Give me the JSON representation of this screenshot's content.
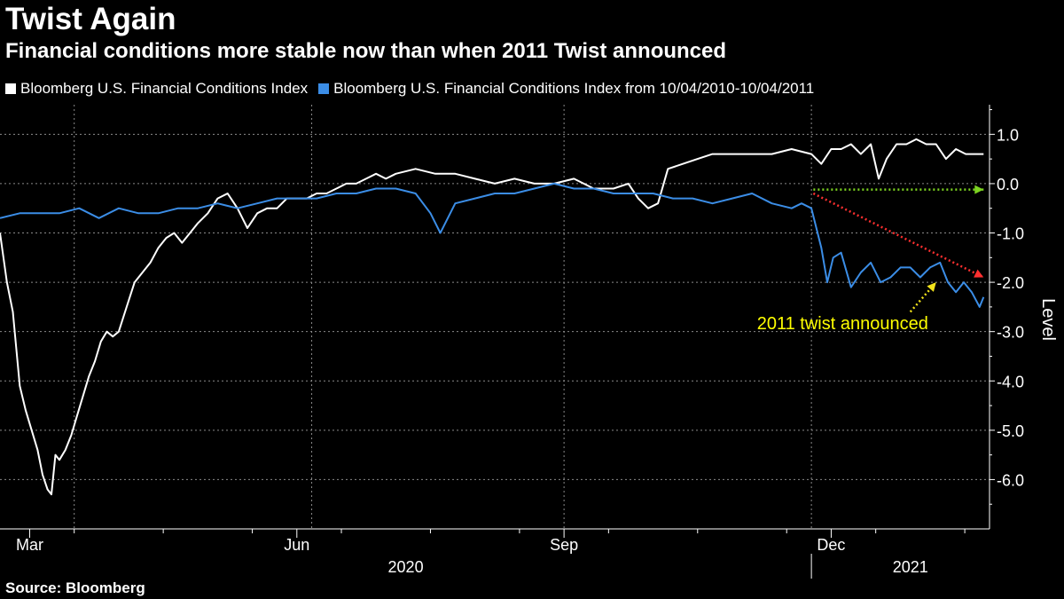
{
  "chart_data": {
    "type": "line",
    "title": "Twist Again",
    "subtitle": "Financial conditions more stable now than when 2011 Twist announced",
    "xlabel": "",
    "ylabel": "Level",
    "ylim": [
      -7.0,
      1.6
    ],
    "yticks": [
      1.0,
      0.0,
      -1.0,
      -2.0,
      -3.0,
      -4.0,
      -5.0,
      -6.0
    ],
    "ytick_labels": [
      "1.0",
      "0.0",
      "-1.0",
      "-2.0",
      "-3.0",
      "-4.0",
      "-5.0",
      "-6.0"
    ],
    "xlim": [
      0,
      100
    ],
    "month_ticks": [
      {
        "x": 3,
        "label": "Mar"
      },
      {
        "x": 30,
        "label": "Jun"
      },
      {
        "x": 57,
        "label": "Sep"
      },
      {
        "x": 84,
        "label": "Dec"
      }
    ],
    "minor_ticks": [
      7.5,
      16.5,
      25.5,
      34.5,
      43.5,
      52.5,
      61.5,
      70.5,
      79.5,
      88.5,
      97.5
    ],
    "grid_x": [
      7.5,
      31.5,
      57,
      82
    ],
    "year_labels": [
      {
        "x": 41,
        "label": "2020"
      },
      {
        "x": 92,
        "label": "2021"
      }
    ],
    "year_divider": 82,
    "legend_position": "top-left",
    "series": [
      {
        "name": "Bloomberg U.S. Financial Conditions Index",
        "color": "#ffffff",
        "x": [
          0,
          0.7,
          1.3,
          2.0,
          2.6,
          3.2,
          3.8,
          4.3,
          4.8,
          5.2,
          5.6,
          6.0,
          6.6,
          7.2,
          7.8,
          8.4,
          9.0,
          9.6,
          10.2,
          10.8,
          11.4,
          12.0,
          12.8,
          13.6,
          14.4,
          15.2,
          16.0,
          16.8,
          17.6,
          18.4,
          19.2,
          20.0,
          21.0,
          22.0,
          23.0,
          24.0,
          25.0,
          26.0,
          27.0,
          28.0,
          29.0,
          30.0,
          31.0,
          32.0,
          33.0,
          34.0,
          35.0,
          36.0,
          37.0,
          38.0,
          39.0,
          40.0,
          42.0,
          44.0,
          46.0,
          48.0,
          50.0,
          52.0,
          54.0,
          56.0,
          58.0,
          60.0,
          62.0,
          63.5,
          64.5,
          65.5,
          66.5,
          67.5,
          69.0,
          70.5,
          72.0,
          74.0,
          76.0,
          78.0,
          80.0,
          82.0,
          83.0,
          84.0,
          85.0,
          86.0,
          87.0,
          88.0,
          88.8,
          89.6,
          90.6,
          91.6,
          92.6,
          93.6,
          94.6,
          95.6,
          96.6,
          97.6,
          98.6,
          99.4
        ],
        "values": [
          -1.0,
          -2.0,
          -2.6,
          -4.1,
          -4.6,
          -5.0,
          -5.4,
          -5.9,
          -6.2,
          -6.3,
          -5.5,
          -5.6,
          -5.4,
          -5.1,
          -4.7,
          -4.3,
          -3.9,
          -3.6,
          -3.2,
          -3.0,
          -3.1,
          -3.0,
          -2.5,
          -2.0,
          -1.8,
          -1.6,
          -1.3,
          -1.1,
          -1.0,
          -1.2,
          -1.0,
          -0.8,
          -0.6,
          -0.3,
          -0.2,
          -0.5,
          -0.9,
          -0.6,
          -0.5,
          -0.5,
          -0.3,
          -0.3,
          -0.3,
          -0.2,
          -0.2,
          -0.1,
          0.0,
          0.0,
          0.1,
          0.2,
          0.1,
          0.2,
          0.3,
          0.2,
          0.2,
          0.1,
          0.0,
          0.1,
          0.0,
          0.0,
          0.1,
          -0.1,
          -0.1,
          0.0,
          -0.3,
          -0.5,
          -0.4,
          0.3,
          0.4,
          0.5,
          0.6,
          0.6,
          0.6,
          0.6,
          0.7,
          0.6,
          0.4,
          0.7,
          0.7,
          0.8,
          0.6,
          0.8,
          0.1,
          0.5,
          0.8,
          0.8,
          0.9,
          0.8,
          0.8,
          0.5,
          0.7,
          0.6,
          0.6,
          0.6
        ]
      },
      {
        "name": "Bloomberg U.S. Financial Conditions Index from 10/04/2010-10/04/2011",
        "color": "#3b8de6",
        "x": [
          0,
          2.0,
          4.0,
          6.0,
          8.0,
          10.0,
          12.0,
          14.0,
          16.0,
          18.0,
          20.0,
          22.0,
          24.0,
          26.0,
          28.0,
          30.0,
          32.0,
          34.0,
          36.0,
          38.0,
          40.0,
          42.0,
          43.5,
          44.5,
          46.0,
          48.0,
          50.0,
          52.0,
          54.0,
          56.0,
          58.0,
          60.0,
          62.0,
          64.0,
          66.0,
          68.0,
          70.0,
          72.0,
          74.0,
          76.0,
          78.0,
          80.0,
          81.0,
          82.0,
          83.0,
          83.6,
          84.2,
          85.0,
          86.0,
          87.0,
          88.0,
          89.0,
          90.0,
          91.0,
          92.0,
          93.0,
          94.0,
          95.0,
          95.8,
          96.6,
          97.4,
          98.2,
          99.0,
          99.4
        ],
        "values": [
          -0.7,
          -0.6,
          -0.6,
          -0.6,
          -0.5,
          -0.7,
          -0.5,
          -0.6,
          -0.6,
          -0.5,
          -0.5,
          -0.4,
          -0.5,
          -0.4,
          -0.3,
          -0.3,
          -0.3,
          -0.2,
          -0.2,
          -0.1,
          -0.1,
          -0.2,
          -0.6,
          -1.0,
          -0.4,
          -0.3,
          -0.2,
          -0.2,
          -0.1,
          0.0,
          -0.1,
          -0.1,
          -0.2,
          -0.2,
          -0.2,
          -0.3,
          -0.3,
          -0.4,
          -0.3,
          -0.2,
          -0.4,
          -0.5,
          -0.4,
          -0.5,
          -1.3,
          -2.0,
          -1.5,
          -1.4,
          -2.1,
          -1.8,
          -1.6,
          -2.0,
          -1.9,
          -1.7,
          -1.7,
          -1.9,
          -1.7,
          -1.6,
          -2.0,
          -2.2,
          -2.0,
          -2.2,
          -2.5,
          -2.3
        ]
      }
    ],
    "arrows": [
      {
        "name": "green",
        "color": "#7dd421",
        "from": [
          82.2,
          -0.12
        ],
        "to": [
          99.4,
          -0.12
        ]
      },
      {
        "name": "red",
        "color": "#ff3030",
        "from": [
          82.2,
          -0.2
        ],
        "to": [
          99.4,
          -1.9
        ]
      },
      {
        "name": "yellow",
        "color": "#f2e31b",
        "from": [
          92.0,
          -2.6
        ],
        "to": [
          94.6,
          -2.0
        ]
      }
    ],
    "annotations": [
      {
        "text": "2011 twist announced",
        "x": 76.5,
        "y": -2.95
      }
    ]
  }
}
